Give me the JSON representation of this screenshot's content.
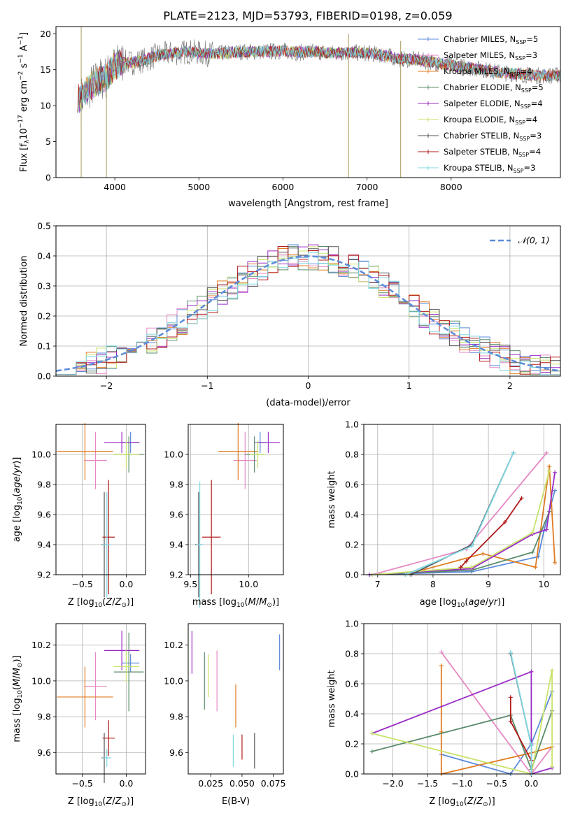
{
  "title": "PLATE=2123, MJD=53793, FIBERID=0198, z=0.059",
  "colors": {
    "chabrier_miles": "#5b8bd9",
    "salpeter_miles": "#e688c4",
    "kroupa_miles": "#e07b22",
    "chabrier_elodie": "#5b8c6b",
    "salpeter_elodie": "#9a2cc6",
    "kroupa_elodie": "#c8e36a",
    "chabrier_stelib": "#555555",
    "salpeter_stelib": "#b31b1b",
    "kroupa_stelib": "#7fd8e3",
    "gaussian": "#5b8bd9",
    "spectrum": "#808080"
  },
  "chart_data": [
    {
      "type": "line",
      "id": "spectrum",
      "xlabel": "wavelength [Angstrom, rest frame]",
      "ylabel": "Flux [fλ10⁻¹⁷ erg cm⁻² s⁻¹ A⁻¹]",
      "xlim": [
        3300,
        9300
      ],
      "ylim": [
        0,
        21
      ],
      "xticks": [
        4000,
        5000,
        6000,
        7000,
        8000
      ],
      "yticks": [
        0,
        5,
        10,
        15,
        20
      ],
      "legend_position": "right",
      "series": [
        {
          "name": "Chabrier MILES, N_SSP=5",
          "label_main": "Chabrier MILES, N",
          "label_sub": "SSP",
          "label_tail": "=5",
          "color": "#5b8bd9"
        },
        {
          "name": "Salpeter MILES, N_SSP=3",
          "label_main": "Salpeter MILES, N",
          "label_sub": "SSP",
          "label_tail": "=3",
          "color": "#e688c4"
        },
        {
          "name": "Kroupa MILES, N_SSP=4",
          "label_main": "Kroupa MILES, N",
          "label_sub": "SSP",
          "label_tail": "=4",
          "color": "#e07b22"
        },
        {
          "name": "Chabrier ELODIE, N_SSP=5",
          "label_main": "Chabrier ELODIE, N",
          "label_sub": "SSP",
          "label_tail": "=5",
          "color": "#5b8c6b"
        },
        {
          "name": "Salpeter ELODIE, N_SSP=4",
          "label_main": "Salpeter ELODIE, N",
          "label_sub": "SSP",
          "label_tail": "=4",
          "color": "#9a2cc6"
        },
        {
          "name": "Kroupa ELODIE, N_SSP=4",
          "label_main": "Kroupa ELODIE, N",
          "label_sub": "SSP",
          "label_tail": "=4",
          "color": "#c8e36a"
        },
        {
          "name": "Chabrier STELIB, N_SSP=3",
          "label_main": "Chabrier STELIB, N",
          "label_sub": "SSP",
          "label_tail": "=3",
          "color": "#555555"
        },
        {
          "name": "Salpeter STELIB, N_SSP=4",
          "label_main": "Salpeter STELIB, N",
          "label_sub": "SSP",
          "label_tail": "=4",
          "color": "#b31b1b"
        },
        {
          "name": "Kroupa STELIB, N_SSP=3",
          "label_main": "Kroupa STELIB, N",
          "label_sub": "SSP",
          "label_tail": "=3",
          "color": "#7fd8e3"
        }
      ],
      "continuum": {
        "x": [
          3600,
          3700,
          3800,
          3900,
          4000,
          4100,
          4200,
          4300,
          4400,
          4500,
          4700,
          4900,
          5100,
          5300,
          5500,
          5700,
          6000,
          6200,
          6400,
          6600,
          6800,
          7000,
          7200,
          7400,
          7600,
          7800,
          8000,
          8200,
          8400,
          8600,
          8800,
          9000
        ],
        "y": [
          11.0,
          12.5,
          13.5,
          14.0,
          15.5,
          16.0,
          16.0,
          16.2,
          16.5,
          17.0,
          17.3,
          17.5,
          17.2,
          17.3,
          17.5,
          17.5,
          17.6,
          17.4,
          17.5,
          17.3,
          17.4,
          17.3,
          17.0,
          16.5,
          16.4,
          16.0,
          15.6,
          15.3,
          15.0,
          14.6,
          14.4,
          14.2
        ]
      },
      "spikes": [
        {
          "x": 3600,
          "y": [
            0,
            21
          ]
        },
        {
          "x": 3900,
          "y": [
            0,
            12
          ]
        },
        {
          "x": 6780,
          "y": [
            0,
            20
          ]
        },
        {
          "x": 7400,
          "y": [
            0,
            19
          ]
        }
      ]
    },
    {
      "type": "area",
      "id": "residuals",
      "xlabel": "(data-model)/error",
      "ylabel": "Normed distribution",
      "xlim": [
        -2.5,
        2.5
      ],
      "ylim": [
        0,
        0.5
      ],
      "xticks": [
        -2,
        -1,
        0,
        1,
        2
      ],
      "yticks": [
        0.0,
        0.1,
        0.2,
        0.3,
        0.4,
        0.5
      ],
      "grid": true,
      "legend": "𝒩(0, 1)",
      "legend_position": "top-right",
      "bin_width": 0.1
    },
    {
      "type": "scatter",
      "id": "age_vs_Z",
      "xlabel": "Z [log10(Z/Z⊙)]",
      "ylabel": "age  [log10(age/yr)]",
      "xlim": [
        -0.8,
        0.22
      ],
      "ylim": [
        9.2,
        10.2
      ],
      "xticks": [
        -0.5,
        0.0
      ],
      "yticks": [
        9.2,
        9.4,
        9.6,
        9.8,
        10.0
      ],
      "grid": true,
      "points": [
        {
          "x": 0.05,
          "y": 10.08,
          "xerr": 0.1,
          "yerr": 0.07,
          "color": "#5b8bd9"
        },
        {
          "x": -0.35,
          "y": 9.96,
          "xerr": 0.13,
          "yerr": 0.19,
          "color": "#e688c4"
        },
        {
          "x": -0.47,
          "y": 10.02,
          "xerr": 0.32,
          "yerr": 0.19,
          "color": "#e07b22"
        },
        {
          "x": 0.03,
          "y": 10.0,
          "xerr": 0.17,
          "yerr": 0.12,
          "color": "#5b8c6b"
        },
        {
          "x": -0.05,
          "y": 10.08,
          "xerr": 0.2,
          "yerr": 0.07,
          "color": "#9a2cc6"
        },
        {
          "x": 0.0,
          "y": 10.0,
          "xerr": 0.15,
          "yerr": 0.09,
          "color": "#c8e36a"
        },
        {
          "x": -0.25,
          "y": 9.4,
          "xerr": 0.03,
          "yerr": 0.35,
          "color": "#555555"
        },
        {
          "x": -0.2,
          "y": 9.45,
          "xerr": 0.07,
          "yerr": 0.38,
          "color": "#b31b1b"
        },
        {
          "x": -0.22,
          "y": 9.4,
          "xerr": 0.05,
          "yerr": 0.35,
          "color": "#7fd8e3"
        }
      ]
    },
    {
      "type": "scatter",
      "id": "age_vs_mass",
      "xlabel": "mass [log10(M/M⊙)]",
      "ylabel": "",
      "xlim": [
        9.48,
        10.3
      ],
      "ylim": [
        9.2,
        10.2
      ],
      "xticks": [
        9.5,
        10.0
      ],
      "yticks": [
        9.2,
        9.4,
        9.6,
        9.8,
        10.0
      ],
      "grid": true,
      "points": [
        {
          "x": 10.1,
          "y": 10.08,
          "xerr": 0.05,
          "yerr": 0.07,
          "color": "#5b8bd9"
        },
        {
          "x": 9.97,
          "y": 9.96,
          "xerr": 0.1,
          "yerr": 0.19,
          "color": "#e688c4"
        },
        {
          "x": 9.91,
          "y": 10.02,
          "xerr": 0.17,
          "yerr": 0.19,
          "color": "#e07b22"
        },
        {
          "x": 10.05,
          "y": 10.0,
          "xerr": 0.08,
          "yerr": 0.12,
          "color": "#5b8c6b"
        },
        {
          "x": 10.17,
          "y": 10.08,
          "xerr": 0.1,
          "yerr": 0.07,
          "color": "#9a2cc6"
        },
        {
          "x": 10.08,
          "y": 10.0,
          "xerr": 0.07,
          "yerr": 0.09,
          "color": "#c8e36a"
        },
        {
          "x": 9.57,
          "y": 9.4,
          "xerr": 0.03,
          "yerr": 0.35,
          "color": "#555555"
        },
        {
          "x": 9.68,
          "y": 9.45,
          "xerr": 0.08,
          "yerr": 0.38,
          "color": "#b31b1b"
        },
        {
          "x": 9.58,
          "y": 9.4,
          "xerr": 0.03,
          "yerr": 0.42,
          "color": "#7fd8e3"
        }
      ]
    },
    {
      "type": "line",
      "id": "weight_vs_age",
      "xlabel": "age  [log10(age/yr)]",
      "ylabel": "mass weight",
      "xlim": [
        6.75,
        10.3
      ],
      "ylim": [
        0,
        1.0
      ],
      "xticks": [
        7,
        8,
        9,
        10
      ],
      "yticks": [
        0.0,
        0.2,
        0.4,
        0.6,
        0.8,
        1.0
      ],
      "grid": true,
      "series": [
        {
          "color": "#5b8bd9",
          "x": [
            6.9,
            8.7,
            9.9,
            10.0,
            10.2
          ],
          "y": [
            0.0,
            0.02,
            0.12,
            0.29,
            0.56
          ]
        },
        {
          "color": "#e688c4",
          "x": [
            6.9,
            8.6,
            10.05
          ],
          "y": [
            0.0,
            0.17,
            0.81
          ]
        },
        {
          "color": "#e07b22",
          "x": [
            7.5,
            8.9,
            9.85,
            10.1,
            10.2
          ],
          "y": [
            0.0,
            0.14,
            0.05,
            0.72,
            0.08
          ]
        },
        {
          "color": "#5b8c6b",
          "x": [
            6.85,
            8.7,
            9.8,
            10.1
          ],
          "y": [
            0.0,
            0.03,
            0.15,
            0.42
          ]
        },
        {
          "color": "#9a2cc6",
          "x": [
            6.85,
            8.7,
            9.8,
            10.05,
            10.2
          ],
          "y": [
            0.0,
            0.04,
            0.27,
            0.3,
            0.68
          ]
        },
        {
          "color": "#c8e36a",
          "x": [
            6.9,
            8.7,
            9.8,
            10.1
          ],
          "y": [
            0.0,
            0.05,
            0.28,
            0.69
          ]
        },
        {
          "color": "#555555",
          "x": [
            7.6,
            8.7,
            9.45
          ],
          "y": [
            0.0,
            0.2,
            0.81
          ]
        },
        {
          "color": "#b31b1b",
          "x": [
            8.5,
            8.6,
            9.3,
            9.6
          ],
          "y": [
            0.05,
            0.09,
            0.35,
            0.51
          ]
        },
        {
          "color": "#7fd8e3",
          "x": [
            7.5,
            8.7,
            9.45
          ],
          "y": [
            0.0,
            0.19,
            0.81
          ]
        }
      ]
    },
    {
      "type": "scatter",
      "id": "mass_vs_Z",
      "xlabel": "Z [log10(Z/Z⊙)]",
      "ylabel": "mass [log10(M/M⊙)]",
      "xlim": [
        -0.8,
        0.22
      ],
      "ylim": [
        9.48,
        10.32
      ],
      "xticks": [
        -0.5,
        0.0
      ],
      "yticks": [
        9.6,
        9.8,
        10.0,
        10.2
      ],
      "grid": true,
      "points": [
        {
          "x": 0.05,
          "y": 10.1,
          "xerr": 0.1,
          "yerr": 0.05,
          "color": "#5b8bd9"
        },
        {
          "x": -0.35,
          "y": 9.97,
          "xerr": 0.13,
          "yerr": 0.19,
          "color": "#e688c4"
        },
        {
          "x": -0.47,
          "y": 9.91,
          "xerr": 0.32,
          "yerr": 0.17,
          "color": "#e07b22"
        },
        {
          "x": 0.03,
          "y": 10.05,
          "xerr": 0.17,
          "yerr": 0.22,
          "color": "#5b8c6b"
        },
        {
          "x": -0.05,
          "y": 10.17,
          "xerr": 0.2,
          "yerr": 0.11,
          "color": "#9a2cc6"
        },
        {
          "x": 0.0,
          "y": 10.08,
          "xerr": 0.15,
          "yerr": 0.09,
          "color": "#c8e36a"
        },
        {
          "x": -0.25,
          "y": 9.57,
          "xerr": 0.03,
          "yerr": 0.14,
          "color": "#555555"
        },
        {
          "x": -0.2,
          "y": 9.68,
          "xerr": 0.07,
          "yerr": 0.1,
          "color": "#b31b1b"
        },
        {
          "x": -0.22,
          "y": 9.57,
          "xerr": 0.05,
          "yerr": 0.05,
          "color": "#7fd8e3"
        }
      ]
    },
    {
      "type": "scatter",
      "id": "mass_vs_ebv",
      "xlabel": "E(B-V)",
      "ylabel": "",
      "xlim": [
        0.007,
        0.083
      ],
      "ylim": [
        9.48,
        10.32
      ],
      "xticks": [
        0.025,
        0.05,
        0.075
      ],
      "yticks": [
        9.6,
        9.8,
        10.0,
        10.2
      ],
      "grid": false,
      "points": [
        {
          "x": 0.08,
          "y": 10.16,
          "yerr": 0.1,
          "color": "#5b8bd9"
        },
        {
          "x": 0.03,
          "y": 10.0,
          "yerr": 0.17,
          "color": "#e688c4"
        },
        {
          "x": 0.045,
          "y": 9.86,
          "yerr": 0.12,
          "color": "#e07b22"
        },
        {
          "x": 0.02,
          "y": 10.0,
          "yerr": 0.16,
          "color": "#5b8c6b"
        },
        {
          "x": 0.01,
          "y": 10.16,
          "yerr": 0.12,
          "color": "#9a2cc6"
        },
        {
          "x": 0.023,
          "y": 10.03,
          "yerr": 0.12,
          "color": "#c8e36a"
        },
        {
          "x": 0.06,
          "y": 9.61,
          "yerr": 0.1,
          "color": "#555555"
        },
        {
          "x": 0.05,
          "y": 9.63,
          "yerr": 0.07,
          "color": "#b31b1b"
        },
        {
          "x": 0.043,
          "y": 9.61,
          "yerr": 0.09,
          "color": "#7fd8e3"
        }
      ]
    },
    {
      "type": "line",
      "id": "weight_vs_Z",
      "xlabel": "Z [log10(Z/Z⊙)]",
      "ylabel": "mass weight",
      "xlim": [
        -2.42,
        0.42
      ],
      "ylim": [
        0,
        1.0
      ],
      "xticks": [
        -2.0,
        -1.5,
        -1.0,
        -0.5,
        0.0
      ],
      "yticks": [
        0.0,
        0.2,
        0.4,
        0.6,
        0.8,
        1.0
      ],
      "grid": true,
      "series": [
        {
          "color": "#5b8bd9",
          "x": [
            -1.3,
            -0.3,
            0.0,
            0.3
          ],
          "y": [
            0.13,
            0.0,
            0.2,
            0.55
          ]
        },
        {
          "color": "#e688c4",
          "x": [
            -1.3,
            0.0,
            0.3
          ],
          "y": [
            0.81,
            0.0,
            0.18
          ]
        },
        {
          "color": "#e07b22",
          "x": [
            -1.3,
            -1.3,
            -1.3,
            0.0,
            0.3
          ],
          "y": [
            0.72,
            0.28,
            0.0,
            0.14,
            0.18
          ]
        },
        {
          "color": "#5b8c6b",
          "x": [
            -2.3,
            -0.3,
            0.0,
            0.3
          ],
          "y": [
            0.15,
            0.39,
            0.03,
            0.42
          ]
        },
        {
          "color": "#9a2cc6",
          "x": [
            -2.3,
            0.0,
            0.0,
            0.3
          ],
          "y": [
            0.27,
            0.68,
            0.0,
            0.04
          ]
        },
        {
          "color": "#c8e36a",
          "x": [
            -2.3,
            0.0,
            0.3,
            0.3
          ],
          "y": [
            0.27,
            0.0,
            0.69,
            0.05
          ]
        },
        {
          "color": "#555555",
          "x": [
            -0.3,
            0.0,
            0.0
          ],
          "y": [
            0.8,
            0.19,
            0.0
          ]
        },
        {
          "color": "#b31b1b",
          "x": [
            -0.3,
            -0.3,
            0.0,
            0.0
          ],
          "y": [
            0.51,
            0.35,
            0.09,
            0.0
          ]
        },
        {
          "color": "#7fd8e3",
          "x": [
            -0.3,
            0.0,
            0.0
          ],
          "y": [
            0.81,
            0.19,
            0.0
          ]
        }
      ]
    }
  ]
}
